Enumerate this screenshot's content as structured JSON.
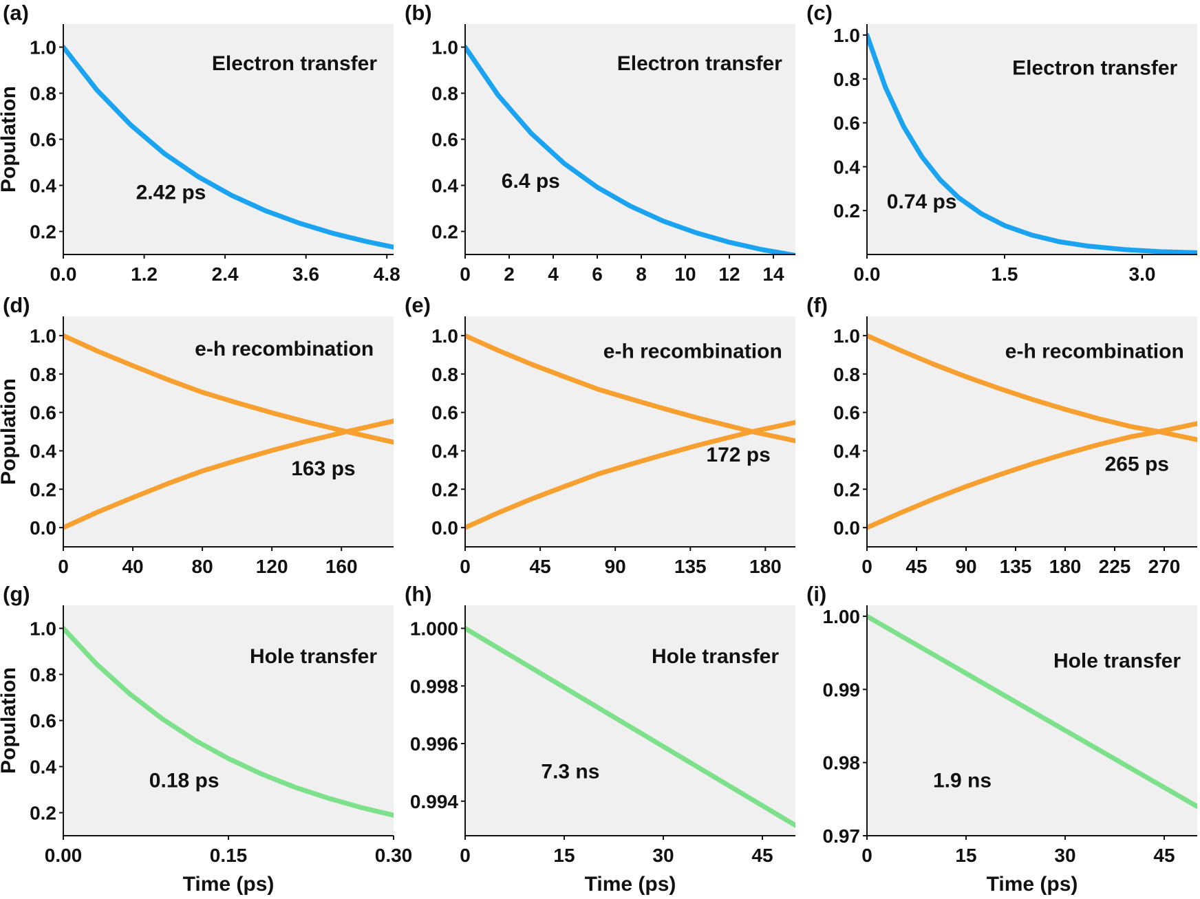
{
  "chart_data": [
    {
      "panel": "(a)",
      "type": "line",
      "title": "",
      "annotation": "Electron transfer",
      "timescale_label": "2.42 ps",
      "xlabel": "",
      "ylabel": "Population",
      "xlim": [
        0,
        4.9
      ],
      "ylim": [
        0.1,
        1.1
      ],
      "xticks": [
        0,
        1.2,
        2.4,
        3.6,
        4.8
      ],
      "xtick_labels": [
        "0.0",
        "1.2",
        "2.4",
        "3.6",
        "4.8"
      ],
      "yticks": [
        0.2,
        0.4,
        0.6,
        0.8,
        1.0
      ],
      "ytick_labels": [
        "0.2",
        "0.4",
        "0.6",
        "0.8",
        "1.0"
      ],
      "series": [
        {
          "color": "#1aa3f0",
          "x": [
            0,
            0.5,
            1.0,
            1.5,
            2.0,
            2.5,
            3.0,
            3.5,
            4.0,
            4.5,
            4.9
          ],
          "y": [
            1.0,
            0.813,
            0.662,
            0.538,
            0.438,
            0.356,
            0.29,
            0.236,
            0.192,
            0.156,
            0.132
          ]
        }
      ]
    },
    {
      "panel": "(b)",
      "type": "line",
      "title": "",
      "annotation": "Electron transfer",
      "timescale_label": "6.4 ps",
      "xlabel": "",
      "ylabel": "",
      "xlim": [
        0,
        15
      ],
      "ylim": [
        0.1,
        1.1
      ],
      "xticks": [
        0,
        2,
        4,
        6,
        8,
        10,
        12,
        14
      ],
      "xtick_labels": [
        "0",
        "2",
        "4",
        "6",
        "8",
        "10",
        "12",
        "14"
      ],
      "yticks": [
        0.2,
        0.4,
        0.6,
        0.8,
        1.0
      ],
      "ytick_labels": [
        "0.2",
        "0.4",
        "0.6",
        "0.8",
        "1.0"
      ],
      "series": [
        {
          "color": "#1aa3f0",
          "x": [
            0,
            1.5,
            3,
            4.5,
            6,
            7.5,
            9,
            10.5,
            12,
            13.5,
            15
          ],
          "y": [
            1.0,
            0.791,
            0.626,
            0.495,
            0.392,
            0.31,
            0.245,
            0.194,
            0.153,
            0.121,
            0.096
          ]
        }
      ]
    },
    {
      "panel": "(c)",
      "type": "line",
      "title": "",
      "annotation": "Electron transfer",
      "timescale_label": "0.74 ps",
      "xlabel": "",
      "ylabel": "",
      "xlim": [
        0,
        3.6
      ],
      "ylim": [
        0.0,
        1.05
      ],
      "xticks": [
        0,
        1.5,
        3.0
      ],
      "xtick_labels": [
        "0.0",
        "1.5",
        "3.0"
      ],
      "yticks": [
        0.2,
        0.4,
        0.6,
        0.8,
        1.0
      ],
      "ytick_labels": [
        "0.2",
        "0.4",
        "0.6",
        "0.8",
        "1.0"
      ],
      "series": [
        {
          "color": "#1aa3f0",
          "x": [
            0,
            0.2,
            0.4,
            0.6,
            0.8,
            1.0,
            1.25,
            1.5,
            1.8,
            2.1,
            2.4,
            2.8,
            3.2,
            3.6
          ],
          "y": [
            1.0,
            0.763,
            0.583,
            0.445,
            0.339,
            0.259,
            0.185,
            0.132,
            0.088,
            0.058,
            0.039,
            0.023,
            0.013,
            0.008
          ]
        }
      ]
    },
    {
      "panel": "(d)",
      "type": "line",
      "title": "",
      "annotation": "e-h recombination",
      "timescale_label": "163 ps",
      "xlabel": "",
      "ylabel": "Population",
      "xlim": [
        0,
        190
      ],
      "ylim": [
        -0.1,
        1.1
      ],
      "xticks": [
        0,
        40,
        80,
        120,
        160
      ],
      "xtick_labels": [
        "0",
        "40",
        "80",
        "120",
        "160"
      ],
      "yticks": [
        0.0,
        0.2,
        0.4,
        0.6,
        0.8,
        1.0
      ],
      "ytick_labels": [
        "0.0",
        "0.2",
        "0.4",
        "0.6",
        "0.8",
        "1.0"
      ],
      "series": [
        {
          "color": "#f7a030",
          "x": [
            0,
            20,
            40,
            60,
            80,
            100,
            120,
            140,
            163,
            190
          ],
          "y": [
            1.0,
            0.918,
            0.843,
            0.771,
            0.705,
            0.65,
            0.598,
            0.55,
            0.5,
            0.445
          ]
        },
        {
          "color": "#f7a030",
          "x": [
            0,
            20,
            40,
            60,
            80,
            100,
            120,
            140,
            163,
            190
          ],
          "y": [
            0.0,
            0.082,
            0.157,
            0.229,
            0.295,
            0.35,
            0.402,
            0.45,
            0.5,
            0.555
          ]
        }
      ]
    },
    {
      "panel": "(e)",
      "type": "line",
      "title": "",
      "annotation": "e-h recombination",
      "timescale_label": "172 ps",
      "xlabel": "",
      "ylabel": "",
      "xlim": [
        0,
        198
      ],
      "ylim": [
        -0.1,
        1.1
      ],
      "xticks": [
        0,
        45,
        90,
        135,
        180
      ],
      "xtick_labels": [
        "0",
        "45",
        "90",
        "135",
        "180"
      ],
      "yticks": [
        0.0,
        0.2,
        0.4,
        0.6,
        0.8,
        1.0
      ],
      "ytick_labels": [
        "0.0",
        "0.2",
        "0.4",
        "0.6",
        "0.8",
        "1.0"
      ],
      "series": [
        {
          "color": "#f7a030",
          "x": [
            0,
            20,
            40,
            60,
            80,
            100,
            120,
            140,
            172,
            198
          ],
          "y": [
            1.0,
            0.922,
            0.85,
            0.784,
            0.72,
            0.668,
            0.618,
            0.57,
            0.5,
            0.452
          ]
        },
        {
          "color": "#f7a030",
          "x": [
            0,
            20,
            40,
            60,
            80,
            100,
            120,
            140,
            172,
            198
          ],
          "y": [
            0.0,
            0.078,
            0.15,
            0.216,
            0.28,
            0.332,
            0.382,
            0.43,
            0.5,
            0.548
          ]
        }
      ]
    },
    {
      "panel": "(f)",
      "type": "line",
      "title": "",
      "annotation": "e-h recombination",
      "timescale_label": "265 ps",
      "xlabel": "",
      "ylabel": "",
      "xlim": [
        0,
        300
      ],
      "ylim": [
        -0.1,
        1.1
      ],
      "xticks": [
        0,
        45,
        90,
        135,
        180,
        225,
        270
      ],
      "xtick_labels": [
        "0",
        "45",
        "90",
        "135",
        "180",
        "225",
        "270"
      ],
      "yticks": [
        0.0,
        0.2,
        0.4,
        0.6,
        0.8,
        1.0
      ],
      "ytick_labels": [
        "0.0",
        "0.2",
        "0.4",
        "0.6",
        "0.8",
        "1.0"
      ],
      "series": [
        {
          "color": "#f7a030",
          "x": [
            0,
            30,
            60,
            90,
            120,
            150,
            180,
            210,
            240,
            265,
            300
          ],
          "y": [
            1.0,
            0.924,
            0.852,
            0.786,
            0.725,
            0.668,
            0.616,
            0.568,
            0.526,
            0.5,
            0.458
          ]
        },
        {
          "color": "#f7a030",
          "x": [
            0,
            30,
            60,
            90,
            120,
            150,
            180,
            210,
            240,
            265,
            300
          ],
          "y": [
            0.0,
            0.076,
            0.148,
            0.214,
            0.275,
            0.332,
            0.384,
            0.432,
            0.474,
            0.5,
            0.542
          ]
        }
      ]
    },
    {
      "panel": "(g)",
      "type": "line",
      "title": "",
      "annotation": "Hole transfer",
      "timescale_label": "0.18 ps",
      "xlabel": "Time (ps)",
      "ylabel": "Population",
      "xlim": [
        0,
        0.3
      ],
      "ylim": [
        0.1,
        1.1
      ],
      "xticks": [
        0,
        0.15,
        0.3
      ],
      "xtick_labels": [
        "0.00",
        "0.15",
        "0.30"
      ],
      "yticks": [
        0.2,
        0.4,
        0.6,
        0.8,
        1.0
      ],
      "ytick_labels": [
        "0.2",
        "0.4",
        "0.6",
        "0.8",
        "1.0"
      ],
      "series": [
        {
          "color": "#7de08a",
          "x": [
            0,
            0.03,
            0.06,
            0.09,
            0.12,
            0.15,
            0.18,
            0.21,
            0.24,
            0.27,
            0.3
          ],
          "y": [
            1.0,
            0.846,
            0.717,
            0.607,
            0.513,
            0.435,
            0.368,
            0.311,
            0.264,
            0.223,
            0.189
          ]
        }
      ]
    },
    {
      "panel": "(h)",
      "type": "line",
      "title": "",
      "annotation": "Hole transfer",
      "timescale_label": "7.3 ns",
      "xlabel": "Time (ps)",
      "ylabel": "",
      "xlim": [
        0,
        50
      ],
      "ylim": [
        0.9928,
        1.0008
      ],
      "xticks": [
        0,
        15,
        30,
        45
      ],
      "xtick_labels": [
        "0",
        "15",
        "30",
        "45"
      ],
      "yticks": [
        0.994,
        0.996,
        0.998,
        1.0
      ],
      "ytick_labels": [
        "0.994",
        "0.996",
        "0.998",
        "1.000"
      ],
      "series": [
        {
          "color": "#7de08a",
          "x": [
            0,
            50
          ],
          "y": [
            1.0,
            0.99316
          ]
        }
      ]
    },
    {
      "panel": "(i)",
      "type": "line",
      "title": "",
      "annotation": "Hole transfer",
      "timescale_label": "1.9 ns",
      "xlabel": "Time (ps)",
      "ylabel": "",
      "xlim": [
        0,
        50
      ],
      "ylim": [
        0.97,
        1.0015
      ],
      "xticks": [
        0,
        15,
        30,
        45
      ],
      "xtick_labels": [
        "0",
        "15",
        "30",
        "45"
      ],
      "yticks": [
        0.97,
        0.98,
        0.99,
        1.0
      ],
      "ytick_labels": [
        "0.97",
        "0.98",
        "0.99",
        "1.00"
      ],
      "series": [
        {
          "color": "#7de08a",
          "x": [
            0,
            50
          ],
          "y": [
            1.0,
            0.974
          ]
        }
      ]
    }
  ]
}
